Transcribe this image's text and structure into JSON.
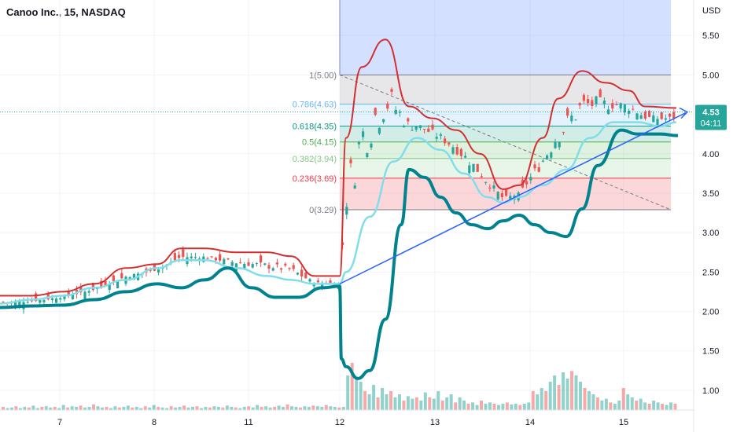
{
  "chart_data": {
    "type": "candlestick",
    "title": "Canoo Inc., 15, NASDAQ",
    "currency": "USD",
    "x_ticks": [
      "7",
      "8",
      "11",
      "12",
      "13",
      "14",
      "15"
    ],
    "y_ticks": [
      "1.00",
      "1.50",
      "2.00",
      "2.50",
      "3.00",
      "3.50",
      "4.00",
      "4.50",
      "5.00",
      "5.50"
    ],
    "ylim": [
      0.75,
      5.95
    ],
    "last_price": "4.53",
    "countdown": "04:11",
    "colors": {
      "up": "#26a69a",
      "down": "#ef5350",
      "upper_band": "#d32f2f",
      "middle_band": "#80deea",
      "thick_line": "#00838f",
      "trendline": "#2962ff",
      "price_line": "#26a69a"
    },
    "fibonacci": {
      "levels": [
        {
          "label": "1(5.00)",
          "price": 5.0,
          "color": "#787b86"
        },
        {
          "label": "0.786(4.63)",
          "price": 4.63,
          "color": "#64b5f6"
        },
        {
          "label": "0.618(4.35)",
          "price": 4.35,
          "color": "#089981"
        },
        {
          "label": "0.5(4.15)",
          "price": 4.15,
          "color": "#4caf50"
        },
        {
          "label": "0.382(3.94)",
          "price": 3.94,
          "color": "#81c784"
        },
        {
          "label": "0.236(3.69)",
          "price": 3.69,
          "color": "#f23645"
        },
        {
          "label": "0(3.29)",
          "price": 3.29,
          "color": "#787b86"
        }
      ],
      "extension_top": 6.0,
      "start_x": "12",
      "end_x": "15+"
    },
    "trend_line": {
      "from": [
        "12",
        2.35
      ],
      "to": [
        "15+",
        4.52
      ]
    },
    "series": [
      {
        "points": [
          [
            0,
            2.2
          ],
          [
            40,
            2.2
          ],
          [
            80,
            2.25
          ],
          [
            120,
            2.35
          ],
          [
            160,
            2.55
          ],
          [
            200,
            2.6
          ],
          [
            230,
            2.8
          ],
          [
            260,
            2.8
          ],
          [
            300,
            2.75
          ],
          [
            340,
            2.75
          ],
          [
            370,
            2.7
          ],
          [
            400,
            2.45
          ],
          [
            432,
            2.45
          ],
          [
            440,
            4.2
          ],
          [
            460,
            5.1
          ],
          [
            490,
            5.45
          ],
          [
            520,
            4.6
          ],
          [
            550,
            4.45
          ],
          [
            580,
            4.3
          ],
          [
            610,
            4.0
          ],
          [
            640,
            3.55
          ],
          [
            660,
            3.6
          ],
          [
            690,
            4.2
          ],
          [
            710,
            4.7
          ],
          [
            740,
            5.05
          ],
          [
            770,
            4.9
          ],
          [
            800,
            4.8
          ],
          [
            820,
            4.6
          ],
          [
            860,
            4.58
          ]
        ]
      },
      {
        "points": [
          [
            0,
            2.1
          ],
          [
            40,
            2.15
          ],
          [
            80,
            2.2
          ],
          [
            120,
            2.3
          ],
          [
            160,
            2.4
          ],
          [
            200,
            2.55
          ],
          [
            230,
            2.65
          ],
          [
            260,
            2.65
          ],
          [
            300,
            2.55
          ],
          [
            340,
            2.45
          ],
          [
            370,
            2.4
          ],
          [
            400,
            2.35
          ],
          [
            432,
            2.35
          ],
          [
            440,
            2.5
          ],
          [
            470,
            3.2
          ],
          [
            500,
            3.9
          ],
          [
            530,
            4.2
          ],
          [
            560,
            4.05
          ],
          [
            590,
            3.75
          ],
          [
            620,
            3.45
          ],
          [
            640,
            3.38
          ],
          [
            660,
            3.45
          ],
          [
            690,
            3.6
          ],
          [
            720,
            3.8
          ],
          [
            750,
            4.2
          ],
          [
            780,
            4.4
          ],
          [
            810,
            4.4
          ],
          [
            840,
            4.35
          ],
          [
            860,
            4.4
          ]
        ]
      },
      {
        "points": [
          [
            0,
            2.05
          ],
          [
            40,
            2.07
          ],
          [
            80,
            2.08
          ],
          [
            120,
            2.15
          ],
          [
            160,
            2.25
          ],
          [
            200,
            2.35
          ],
          [
            230,
            2.3
          ],
          [
            260,
            2.4
          ],
          [
            290,
            2.55
          ],
          [
            320,
            2.3
          ],
          [
            350,
            2.18
          ],
          [
            380,
            2.18
          ],
          [
            410,
            2.3
          ],
          [
            432,
            2.32
          ],
          [
            434,
            1.4
          ],
          [
            440,
            1.3
          ],
          [
            455,
            1.15
          ],
          [
            470,
            1.25
          ],
          [
            490,
            1.9
          ],
          [
            510,
            3.1
          ],
          [
            520,
            3.8
          ],
          [
            540,
            3.7
          ],
          [
            560,
            3.45
          ],
          [
            580,
            3.25
          ],
          [
            600,
            3.1
          ],
          [
            620,
            3.05
          ],
          [
            640,
            3.15
          ],
          [
            660,
            3.22
          ],
          [
            680,
            3.1
          ],
          [
            700,
            3.0
          ],
          [
            720,
            2.95
          ],
          [
            740,
            3.3
          ],
          [
            760,
            3.85
          ],
          [
            790,
            4.3
          ],
          [
            810,
            4.25
          ],
          [
            840,
            4.25
          ],
          [
            862,
            4.23
          ]
        ]
      }
    ],
    "volume": [
      0.05,
      0.03,
      0.04,
      0.06,
      0.03,
      0.05,
      0.04,
      0.07,
      0.03,
      0.05,
      0.06,
      0.04,
      0.05,
      0.03,
      0.08,
      0.04,
      0.06,
      0.05,
      0.07,
      0.04,
      0.05,
      0.09,
      0.06,
      0.04,
      0.05,
      0.03,
      0.06,
      0.04,
      0.05,
      0.07,
      0.04,
      0.05,
      0.03,
      0.06,
      0.04,
      0.08,
      0.05,
      0.04,
      0.03,
      0.06,
      0.04,
      0.05,
      0.07,
      0.04,
      0.05,
      0.06,
      0.03,
      0.05,
      0.04,
      0.06,
      0.05,
      0.04,
      0.07,
      0.05,
      0.04,
      0.03,
      0.05,
      0.06,
      0.04,
      0.08,
      0.05,
      0.06,
      0.04,
      0.05,
      0.07,
      0.05,
      0.09,
      0.06,
      0.05,
      0.04,
      0.06,
      0.05,
      0.07,
      0.06,
      0.05,
      0.08,
      0.06,
      0.05,
      0.04,
      0.05,
      0.55,
      0.75,
      0.5,
      0.45,
      0.3,
      0.25,
      0.4,
      0.2,
      0.35,
      0.25,
      0.3,
      0.2,
      0.25,
      0.15,
      0.22,
      0.18,
      0.2,
      0.15,
      0.28,
      0.2,
      0.18,
      0.3,
      0.15,
      0.2,
      0.25,
      0.12,
      0.2,
      0.15,
      0.1,
      0.12,
      0.08,
      0.15,
      0.1,
      0.12,
      0.1,
      0.08,
      0.1,
      0.12,
      0.09,
      0.1,
      0.08,
      0.1,
      0.12,
      0.3,
      0.25,
      0.35,
      0.3,
      0.45,
      0.55,
      0.4,
      0.6,
      0.5,
      0.62,
      0.55,
      0.45,
      0.35,
      0.3,
      0.25,
      0.2,
      0.15,
      0.18,
      0.12,
      0.1,
      0.15,
      0.35,
      0.25,
      0.2,
      0.15,
      0.18,
      0.12,
      0.1,
      0.15,
      0.12,
      0.1,
      0.08,
      0.12,
      0.1
    ]
  }
}
